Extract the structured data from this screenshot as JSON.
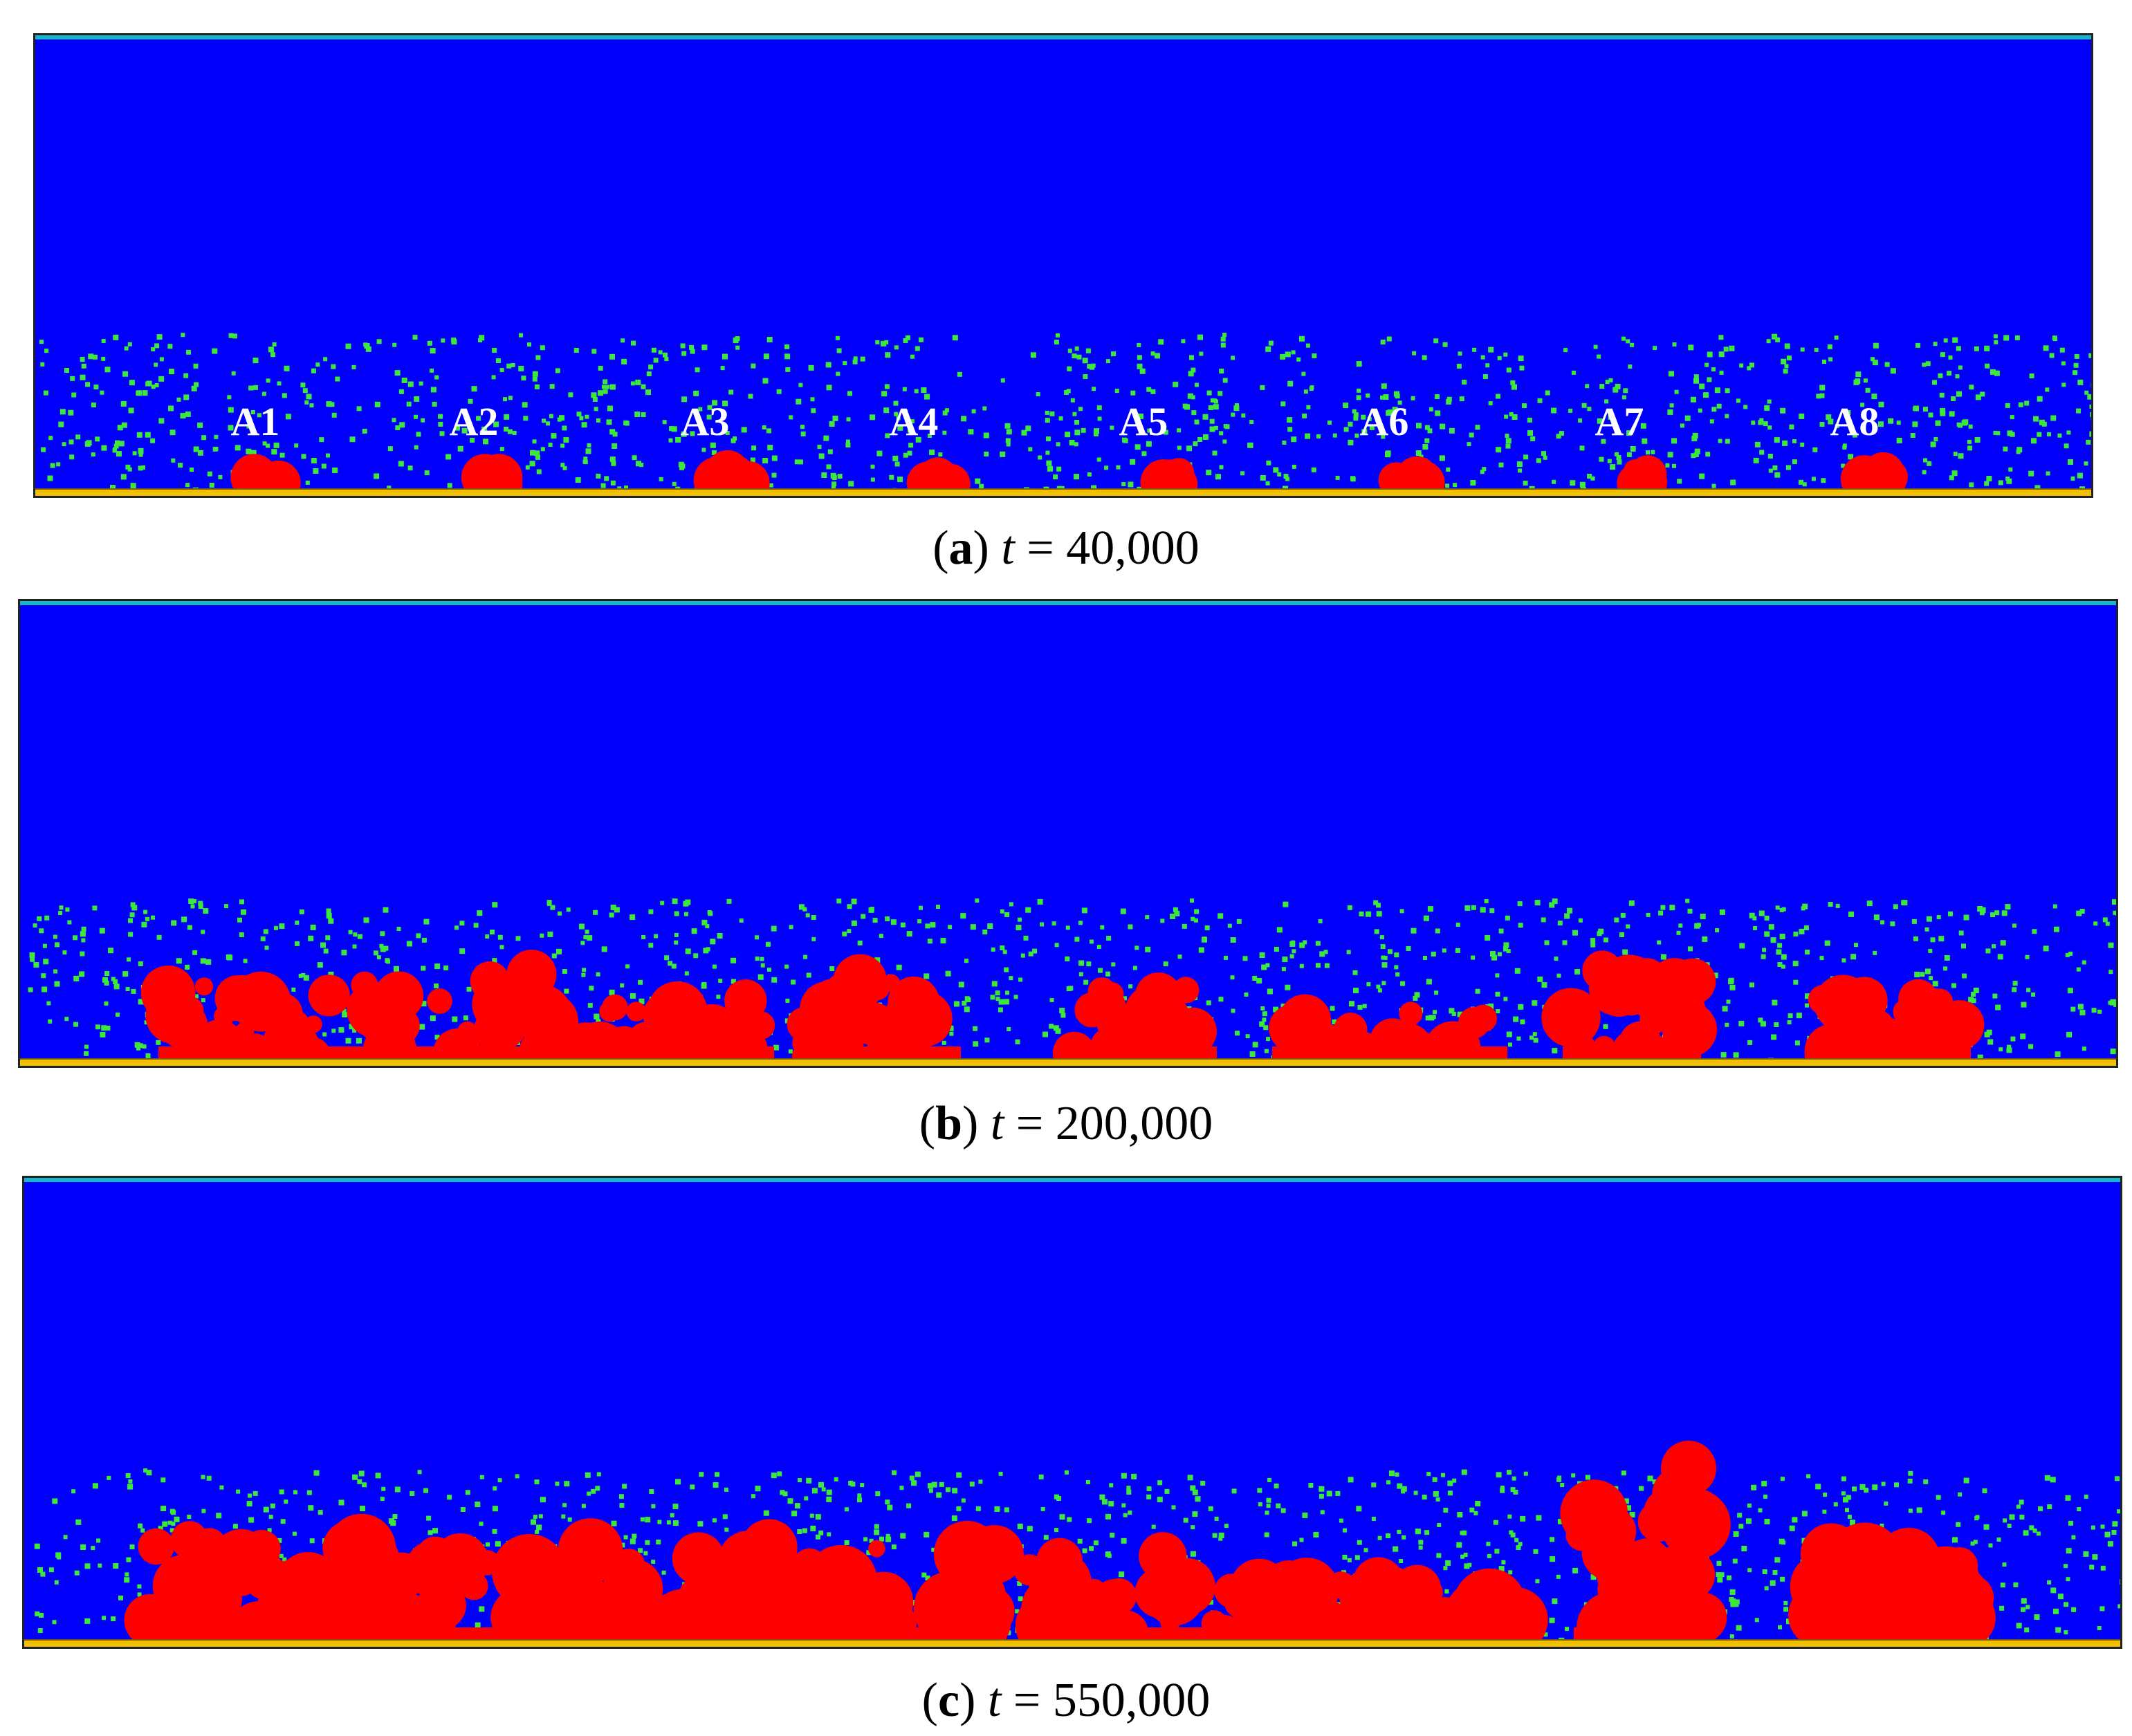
{
  "panels": [
    {
      "id": "a",
      "caption": {
        "letter": "a",
        "var": "t",
        "eq": "=",
        "value": "40,000"
      },
      "labels": [
        "A1",
        "A2",
        "A3",
        "A4",
        "A5",
        "A6",
        "A7",
        "A8"
      ]
    },
    {
      "id": "b",
      "caption": {
        "letter": "b",
        "var": "t",
        "eq": "=",
        "value": "200,000"
      },
      "labels": []
    },
    {
      "id": "c",
      "caption": {
        "letter": "c",
        "var": "t",
        "eq": "=",
        "value": "550,000"
      },
      "labels": []
    }
  ],
  "colors": {
    "fluid": "#0000fa",
    "particles": "#3ee83a",
    "phase": "#ff0000",
    "wall": "#f0c000",
    "top_boundary": "#18b7c8"
  }
}
